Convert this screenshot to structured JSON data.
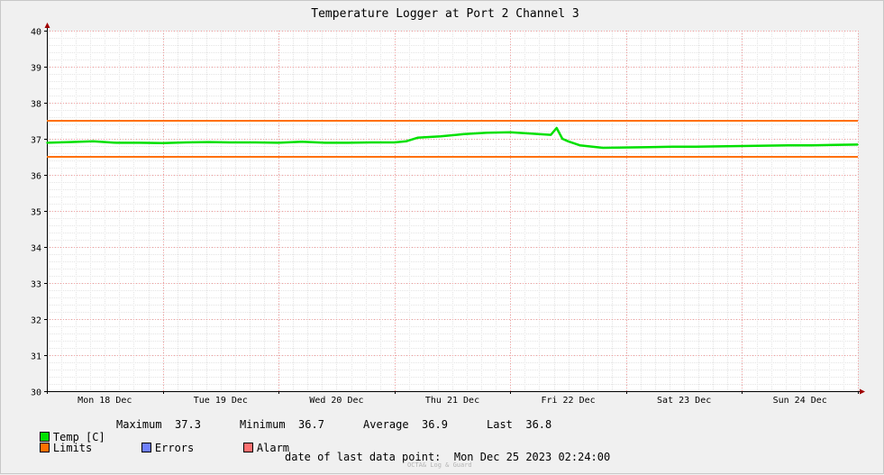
{
  "chart_data": {
    "type": "line",
    "title": "Temperature Logger at Port 2 Channel 3",
    "xlabel": "",
    "ylabel": "",
    "ylim": [
      30,
      40
    ],
    "yticks": [
      30,
      31,
      32,
      33,
      34,
      35,
      36,
      37,
      38,
      39,
      40
    ],
    "xlim": [
      0,
      7
    ],
    "x_tick_labels": [
      "Mon 18 Dec",
      "Tue 19 Dec",
      "Wed 20 Dec",
      "Thu 21 Dec",
      "Fri 22 Dec",
      "Sat 23 Dec",
      "Sun 24 Dec"
    ],
    "grid": true,
    "series": [
      {
        "name": "Temp [C]",
        "color": "#00e000",
        "x": [
          0.0,
          0.2,
          0.4,
          0.6,
          0.8,
          1.0,
          1.2,
          1.4,
          1.6,
          1.8,
          2.0,
          2.2,
          2.4,
          2.6,
          2.8,
          3.0,
          3.1,
          3.2,
          3.4,
          3.6,
          3.8,
          4.0,
          4.2,
          4.35,
          4.4,
          4.45,
          4.5,
          4.6,
          4.8,
          5.0,
          5.2,
          5.4,
          5.6,
          5.8,
          6.0,
          6.2,
          6.4,
          6.6,
          6.8,
          7.0
        ],
        "values": [
          36.89,
          36.91,
          36.93,
          36.89,
          36.89,
          36.88,
          36.9,
          36.91,
          36.9,
          36.9,
          36.89,
          36.92,
          36.89,
          36.89,
          36.9,
          36.9,
          36.93,
          37.03,
          37.07,
          37.13,
          37.17,
          37.18,
          37.14,
          37.11,
          37.3,
          37.0,
          36.93,
          36.82,
          36.75,
          36.76,
          36.77,
          36.78,
          36.78,
          36.79,
          36.8,
          36.81,
          36.82,
          36.82,
          36.83,
          36.84
        ]
      }
    ],
    "limits": {
      "name": "Limits",
      "color": "#ff7000",
      "upper": 37.5,
      "lower": 36.5
    }
  },
  "legend": {
    "temp_label": "Temp [C]",
    "temp_color": "#00e000",
    "limits_label": "Limits",
    "limits_color": "#ff7000",
    "errors_label": "Errors",
    "errors_color": "#6f80ff",
    "alarm_label": "Alarm",
    "alarm_color": "#ff7070"
  },
  "stats": {
    "maximum_label": "Maximum",
    "maximum_value": "37.3",
    "minimum_label": "Minimum",
    "minimum_value": "36.7",
    "average_label": "Average",
    "average_value": "36.9",
    "last_label": "Last",
    "last_value": "36.8"
  },
  "footer": {
    "last_point_label": "date of last data point:",
    "last_point_value": "Mon Dec 25 2023 02:24:00",
    "credit": "OCTA& Log & Guard"
  }
}
